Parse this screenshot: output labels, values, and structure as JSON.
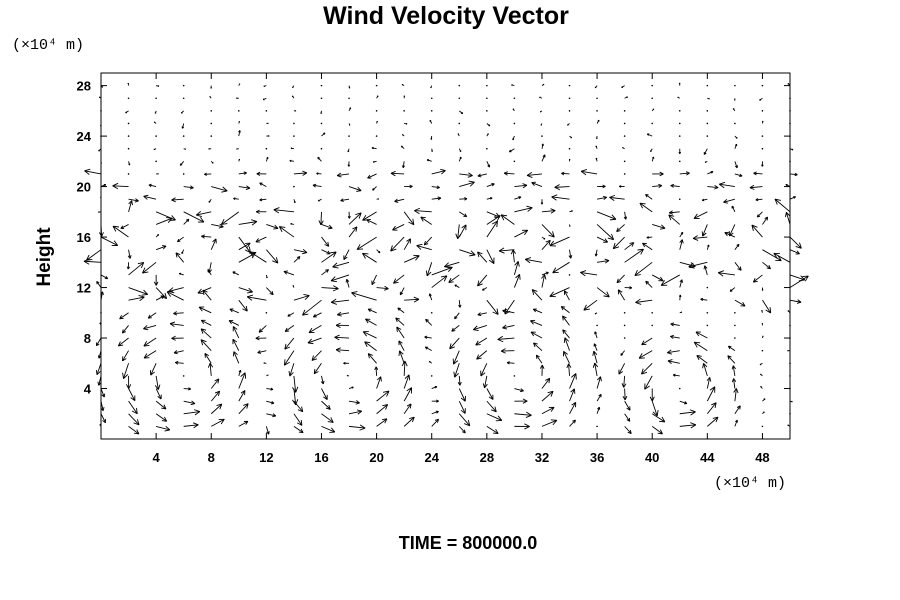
{
  "chart_data": {
    "type": "vector-field",
    "title": "Wind Velocity Vector",
    "ylabel": "Height",
    "xlabel": "",
    "y_unit": "(×10⁴ m)",
    "x_unit": "(×10⁴ m)",
    "footer": "TIME = 800000.0",
    "xlim": [
      0,
      50
    ],
    "ylim": [
      0,
      29
    ],
    "x_ticks": [
      4,
      8,
      12,
      16,
      20,
      24,
      28,
      32,
      36,
      40,
      44,
      48
    ],
    "y_ticks": [
      4,
      8,
      12,
      16,
      20,
      24,
      28
    ],
    "grid": false,
    "grid_x": [
      0,
      2,
      4,
      6,
      8,
      10,
      12,
      14,
      16,
      18,
      20,
      22,
      24,
      26,
      28,
      30,
      32,
      34,
      36,
      38,
      40,
      42,
      44,
      46,
      48,
      50
    ],
    "grid_y": [
      1,
      2,
      3,
      4,
      5,
      6,
      7,
      8,
      9,
      10,
      11,
      12,
      13,
      14,
      15,
      16,
      17,
      18,
      19,
      20,
      21,
      22,
      23,
      24,
      25,
      26,
      27,
      28
    ],
    "circulation_cells": [
      {
        "x": 6,
        "y": 5,
        "rx": 5.5,
        "ry": 5
      },
      {
        "x": 18,
        "y": 5,
        "rx": 6,
        "ry": 5
      },
      {
        "x": 30,
        "y": 5,
        "rx": 5.5,
        "ry": 5
      },
      {
        "x": 42,
        "y": 4,
        "rx": 4,
        "ry": 4
      }
    ],
    "vector_scale_note": "arrow length proportional to speed"
  }
}
